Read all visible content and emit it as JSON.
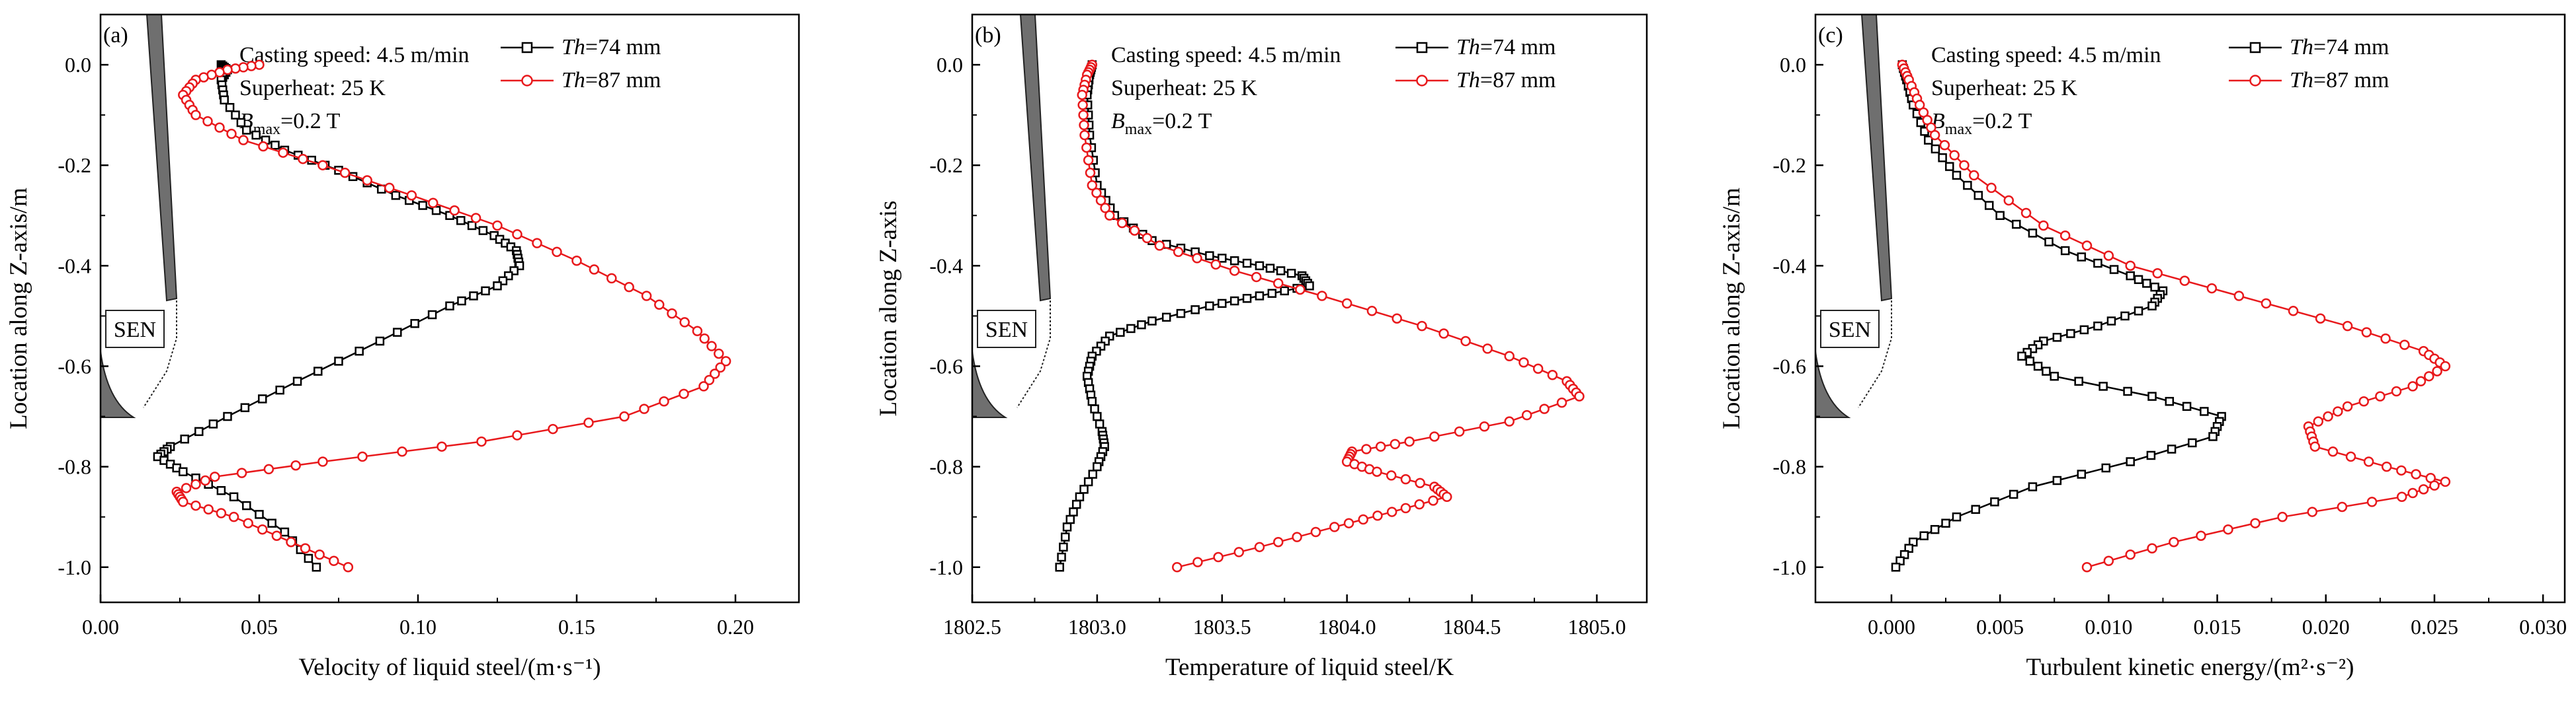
{
  "colors": {
    "series1": "#000000",
    "series2": "#e8191c",
    "sen_fill": "#6f6f6f"
  },
  "legend_prefix": "Th",
  "bmax_prefix": "B",
  "bmax_sub": "max",
  "chart_data": [
    {
      "type": "line",
      "panel_label": "(a)",
      "xlabel": "Velocity of liquid steel/(m·s⁻¹)",
      "ylabel": "Location along Z-axis/m",
      "xlim": [
        0.0,
        0.22
      ],
      "ylim": [
        -1.07,
        0.1
      ],
      "xticks": [
        0.0,
        0.05,
        0.1,
        0.15,
        0.2
      ],
      "xtick_labels": [
        "0.00",
        "0.05",
        "0.10",
        "0.15",
        "0.20"
      ],
      "yticks": [
        0.0,
        -0.2,
        -0.4,
        -0.6,
        -0.8,
        -1.0
      ],
      "ytick_labels": [
        "0.0",
        "-0.2",
        "-0.4",
        "-0.6",
        "-0.8",
        "-1.0"
      ],
      "annotations": [
        "Casting speed: 4.5 m/min",
        "Superheat: 25 K",
        "=0.2 T"
      ],
      "sen_label": "SEN",
      "series": [
        {
          "name": "=74 mm",
          "marker": "square",
          "points": [
            [
              0.038,
              0.0
            ],
            [
              0.04,
              -0.01
            ],
            [
              0.038,
              -0.03
            ],
            [
              0.039,
              -0.07
            ],
            [
              0.046,
              -0.13
            ],
            [
              0.058,
              -0.17
            ],
            [
              0.075,
              -0.21
            ],
            [
              0.093,
              -0.26
            ],
            [
              0.11,
              -0.3
            ],
            [
              0.124,
              -0.34
            ],
            [
              0.131,
              -0.37
            ],
            [
              0.132,
              -0.4
            ],
            [
              0.125,
              -0.44
            ],
            [
              0.11,
              -0.48
            ],
            [
              0.088,
              -0.55
            ],
            [
              0.062,
              -0.63
            ],
            [
              0.04,
              -0.7
            ],
            [
              0.022,
              -0.76
            ],
            [
              0.018,
              -0.78
            ],
            [
              0.026,
              -0.81
            ],
            [
              0.042,
              -0.86
            ],
            [
              0.058,
              -0.93
            ],
            [
              0.068,
              -1.0
            ]
          ]
        },
        {
          "name": "=87 mm",
          "marker": "circle",
          "points": [
            [
              0.05,
              0.0
            ],
            [
              0.04,
              -0.01
            ],
            [
              0.03,
              -0.03
            ],
            [
              0.026,
              -0.06
            ],
            [
              0.03,
              -0.1
            ],
            [
              0.045,
              -0.15
            ],
            [
              0.07,
              -0.2
            ],
            [
              0.098,
              -0.26
            ],
            [
              0.125,
              -0.32
            ],
            [
              0.15,
              -0.39
            ],
            [
              0.172,
              -0.46
            ],
            [
              0.188,
              -0.53
            ],
            [
              0.197,
              -0.59
            ],
            [
              0.19,
              -0.64
            ],
            [
              0.165,
              -0.7
            ],
            [
              0.12,
              -0.75
            ],
            [
              0.07,
              -0.79
            ],
            [
              0.036,
              -0.82
            ],
            [
              0.024,
              -0.85
            ],
            [
              0.026,
              -0.87
            ],
            [
              0.042,
              -0.9
            ],
            [
              0.06,
              -0.95
            ],
            [
              0.078,
              -1.0
            ]
          ]
        }
      ]
    },
    {
      "type": "line",
      "panel_label": "(b)",
      "xlabel": "Temperature of liquid steel/K",
      "ylabel": "Location along Z-axis",
      "xlim": [
        1802.5,
        1805.2
      ],
      "ylim": [
        -1.07,
        0.1
      ],
      "xticks": [
        1802.5,
        1803.0,
        1803.5,
        1804.0,
        1804.5,
        1805.0
      ],
      "xtick_labels": [
        "1802.5",
        "1803.0",
        "1803.5",
        "1804.0",
        "1804.5",
        "1805.0"
      ],
      "yticks": [
        0.0,
        -0.2,
        -0.4,
        -0.6,
        -0.8,
        -1.0
      ],
      "ytick_labels": [
        "0.0",
        "-0.2",
        "-0.4",
        "-0.6",
        "-0.8",
        "-1.0"
      ],
      "annotations": [
        "Casting speed: 4.5 m/min",
        "Superheat: 25 K",
        "=0.2 T"
      ],
      "sen_label": "SEN",
      "series": [
        {
          "name": "=74 mm",
          "marker": "square",
          "points": [
            [
              1802.98,
              0.0
            ],
            [
              1802.97,
              -0.02
            ],
            [
              1802.96,
              -0.06
            ],
            [
              1802.97,
              -0.14
            ],
            [
              1803.0,
              -0.24
            ],
            [
              1803.07,
              -0.3
            ],
            [
              1803.22,
              -0.35
            ],
            [
              1803.45,
              -0.38
            ],
            [
              1803.65,
              -0.4
            ],
            [
              1803.82,
              -0.42
            ],
            [
              1803.85,
              -0.44
            ],
            [
              1803.65,
              -0.46
            ],
            [
              1803.45,
              -0.48
            ],
            [
              1803.22,
              -0.51
            ],
            [
              1803.05,
              -0.54
            ],
            [
              1802.98,
              -0.58
            ],
            [
              1802.96,
              -0.62
            ],
            [
              1802.98,
              -0.67
            ],
            [
              1803.02,
              -0.73
            ],
            [
              1803.03,
              -0.76
            ],
            [
              1803.0,
              -0.8
            ],
            [
              1802.93,
              -0.86
            ],
            [
              1802.88,
              -0.92
            ],
            [
              1802.85,
              -1.0
            ]
          ]
        },
        {
          "name": "=87 mm",
          "marker": "circle",
          "points": [
            [
              1802.98,
              0.0
            ],
            [
              1802.96,
              -0.02
            ],
            [
              1802.94,
              -0.06
            ],
            [
              1802.95,
              -0.14
            ],
            [
              1802.98,
              -0.24
            ],
            [
              1803.05,
              -0.3
            ],
            [
              1803.25,
              -0.36
            ],
            [
              1803.55,
              -0.41
            ],
            [
              1803.9,
              -0.46
            ],
            [
              1804.3,
              -0.52
            ],
            [
              1804.65,
              -0.58
            ],
            [
              1804.88,
              -0.63
            ],
            [
              1804.93,
              -0.66
            ],
            [
              1804.65,
              -0.71
            ],
            [
              1804.25,
              -0.75
            ],
            [
              1804.02,
              -0.77
            ],
            [
              1804.0,
              -0.79
            ],
            [
              1804.12,
              -0.81
            ],
            [
              1804.35,
              -0.84
            ],
            [
              1804.4,
              -0.86
            ],
            [
              1804.18,
              -0.89
            ],
            [
              1803.95,
              -0.92
            ],
            [
              1803.65,
              -0.96
            ],
            [
              1803.32,
              -1.0
            ]
          ]
        }
      ]
    },
    {
      "type": "line",
      "panel_label": "(c)",
      "xlabel": "Turbulent kinetic energy/(m²·s⁻²)",
      "ylabel": "Location along Z-axis/m",
      "xlim": [
        -0.0035,
        0.031
      ],
      "ylim": [
        -1.07,
        0.1
      ],
      "xticks": [
        0.0,
        0.005,
        0.01,
        0.015,
        0.02,
        0.025,
        0.03
      ],
      "xtick_labels": [
        "0.000",
        "0.005",
        "0.010",
        "0.015",
        "0.020",
        "0.025",
        "0.030"
      ],
      "yticks": [
        0.0,
        -0.2,
        -0.4,
        -0.6,
        -0.8,
        -1.0
      ],
      "ytick_labels": [
        "0.0",
        "-0.2",
        "-0.4",
        "-0.6",
        "-0.8",
        "-1.0"
      ],
      "annotations": [
        "Casting speed: 4.5 m/min",
        "Superheat: 25 K",
        "=0.2 T"
      ],
      "sen_label": "SEN",
      "series": [
        {
          "name": "=74 mm",
          "marker": "square",
          "points": [
            [
              0.0005,
              0.0
            ],
            [
              0.0007,
              -0.03
            ],
            [
              0.001,
              -0.08
            ],
            [
              0.0017,
              -0.15
            ],
            [
              0.003,
              -0.22
            ],
            [
              0.005,
              -0.3
            ],
            [
              0.008,
              -0.37
            ],
            [
              0.011,
              -0.42
            ],
            [
              0.0125,
              -0.45
            ],
            [
              0.012,
              -0.48
            ],
            [
              0.0095,
              -0.52
            ],
            [
              0.007,
              -0.55
            ],
            [
              0.006,
              -0.58
            ],
            [
              0.0075,
              -0.62
            ],
            [
              0.012,
              -0.66
            ],
            [
              0.0152,
              -0.7
            ],
            [
              0.0148,
              -0.74
            ],
            [
              0.011,
              -0.79
            ],
            [
              0.0065,
              -0.84
            ],
            [
              0.003,
              -0.9
            ],
            [
              0.001,
              -0.95
            ],
            [
              0.0002,
              -1.0
            ]
          ]
        },
        {
          "name": "=87 mm",
          "marker": "circle",
          "points": [
            [
              0.0005,
              0.0
            ],
            [
              0.0008,
              -0.03
            ],
            [
              0.0013,
              -0.08
            ],
            [
              0.002,
              -0.14
            ],
            [
              0.0038,
              -0.22
            ],
            [
              0.007,
              -0.32
            ],
            [
              0.011,
              -0.4
            ],
            [
              0.016,
              -0.46
            ],
            [
              0.021,
              -0.52
            ],
            [
              0.0245,
              -0.57
            ],
            [
              0.0255,
              -0.6
            ],
            [
              0.024,
              -0.64
            ],
            [
              0.021,
              -0.68
            ],
            [
              0.0192,
              -0.72
            ],
            [
              0.0195,
              -0.76
            ],
            [
              0.0228,
              -0.8
            ],
            [
              0.0255,
              -0.83
            ],
            [
              0.0235,
              -0.86
            ],
            [
              0.018,
              -0.9
            ],
            [
              0.013,
              -0.95
            ],
            [
              0.009,
              -1.0
            ]
          ]
        }
      ]
    }
  ]
}
